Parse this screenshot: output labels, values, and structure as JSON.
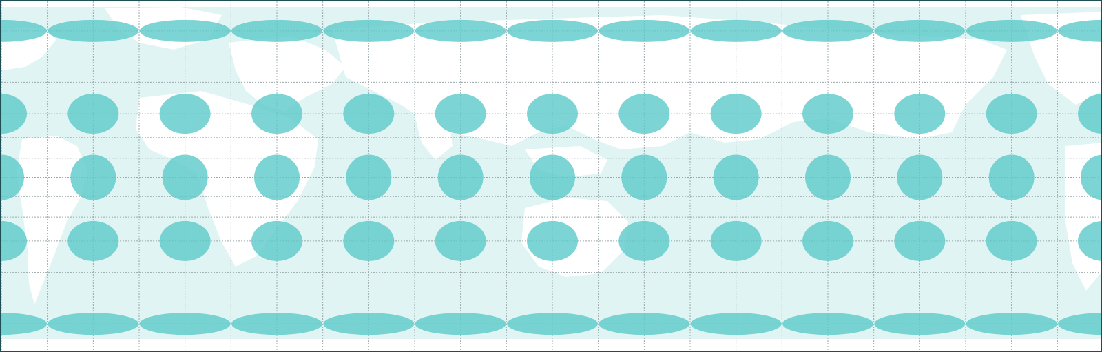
{
  "map": {
    "kind": "world map with Tissot indicatrices",
    "colors": {
      "frame": "#1f4f56",
      "ocean": "#e0f4f3",
      "land": "#ffffff",
      "indicatrix": "#5cc9c9",
      "graticule": "#9aa8ab"
    },
    "graticule_step_deg": 15,
    "indicatrix_spacing_lon_deg": 30,
    "indicatrix_latitudes_deg": [
      75,
      45,
      0,
      -45,
      -75
    ]
  }
}
